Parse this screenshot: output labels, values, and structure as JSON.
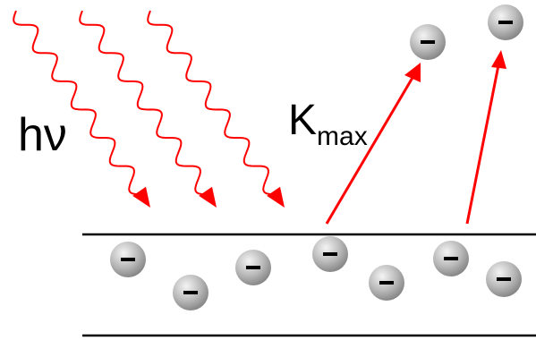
{
  "labels": {
    "photon_energy": "hν",
    "kinetic_energy_symbol": "K",
    "kinetic_energy_subscript": "max"
  },
  "electron_sign": "−",
  "colors": {
    "photon": "#ff0000",
    "emission_arrow": "#ff0000",
    "surface_line": "#000000",
    "electron_light": "#e8e8e8",
    "electron_dark": "#8a8a8a"
  }
}
